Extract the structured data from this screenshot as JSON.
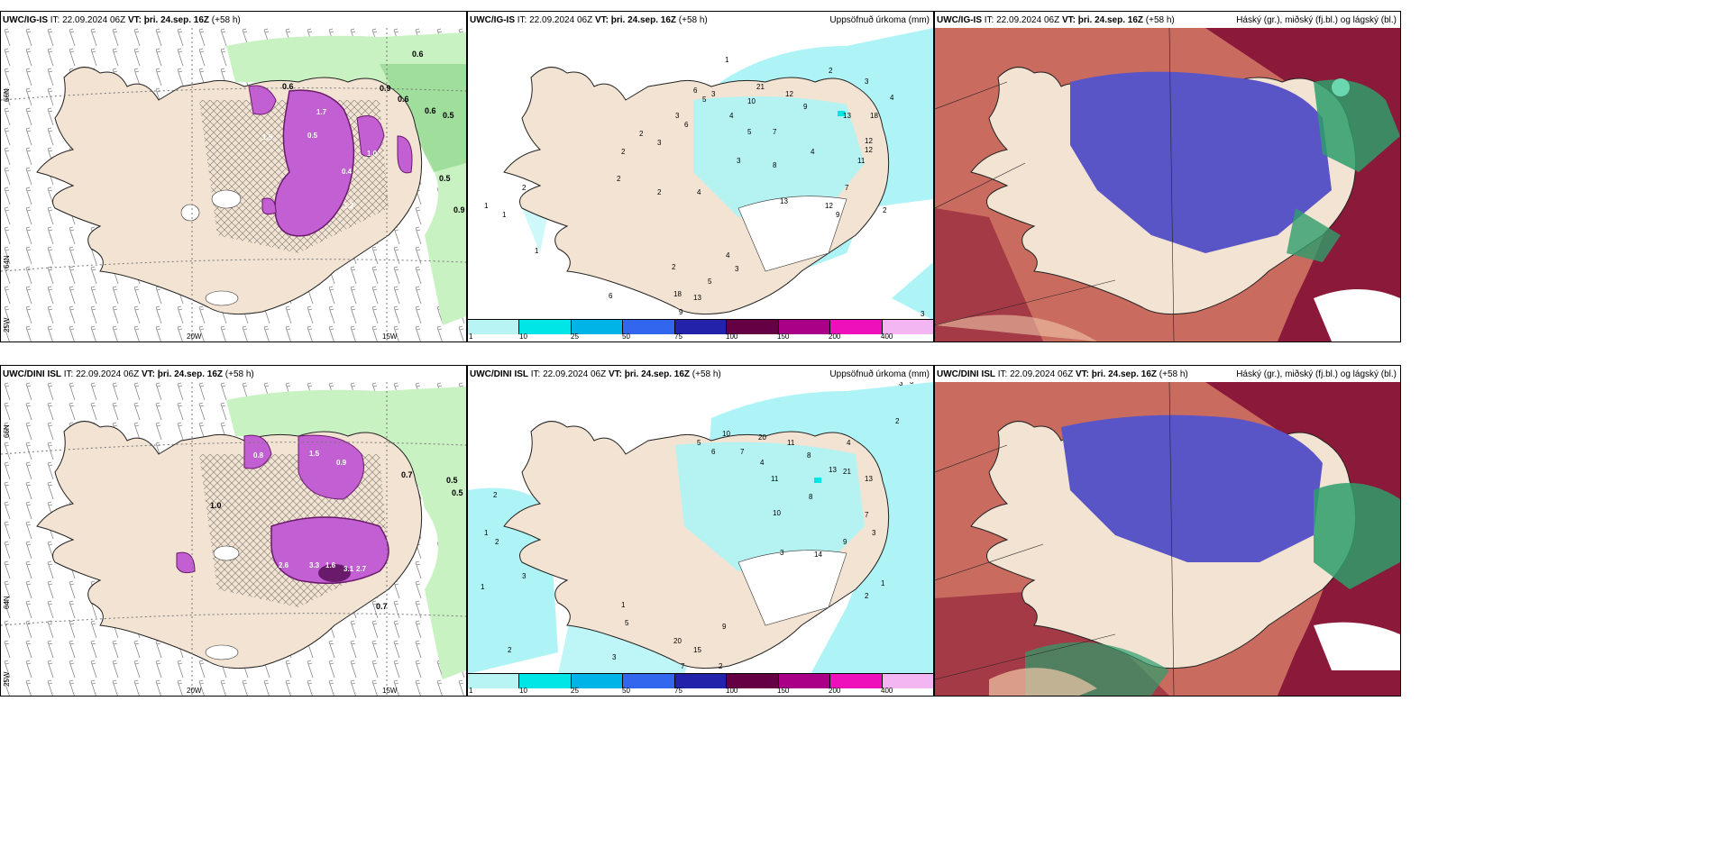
{
  "panels": {
    "p1": {
      "model": "UWC/IG-IS",
      "it_prefix": "IT:",
      "it": "22.09.2024 06Z",
      "vt_prefix": "VT:",
      "vt": "þri. 24.sep. 16Z",
      "lead": "(+58 h)",
      "right": ""
    },
    "p2": {
      "model": "UWC/IG-IS",
      "it_prefix": "IT:",
      "it": "22.09.2024 06Z",
      "vt_prefix": "VT:",
      "vt": "þri. 24.sep. 16Z",
      "lead": "(+58 h)",
      "right": "Uppsöfnuð úrkoma (mm)"
    },
    "p3": {
      "model": "UWC/IG-IS",
      "it_prefix": "IT:",
      "it": "22.09.2024 06Z",
      "vt_prefix": "VT:",
      "vt": "þri. 24.sep. 16Z",
      "lead": "(+58 h)",
      "right": "Háský (gr.), miðský (fj.bl.) og lágský (bl.)"
    },
    "p4": {
      "model": "UWC/DINI ISL",
      "it_prefix": "IT:",
      "it": "22.09.2024 06Z",
      "vt_prefix": "VT:",
      "vt": "þri. 24.sep. 16Z",
      "lead": "(+58 h)",
      "right": ""
    },
    "p5": {
      "model": "UWC/DINI ISL",
      "it_prefix": "IT:",
      "it": "22.09.2024 06Z",
      "vt_prefix": "VT:",
      "vt": "þri. 24.sep. 16Z",
      "lead": "(+58 h)",
      "right": "Uppsöfnuð úrkoma (mm)"
    },
    "p6": {
      "model": "UWC/DINI ISL",
      "it_prefix": "IT:",
      "it": "22.09.2024 06Z",
      "vt_prefix": "VT:",
      "vt": "þri. 24.sep. 16Z",
      "lead": "(+58 h)",
      "right": "Háský (gr.), miðský (fj.bl.) og lágský (bl.)"
    }
  },
  "axes": {
    "lat_66": "66N",
    "lat_64": "64N",
    "lon_25": "25W",
    "lon_20": "20W",
    "lon_15": "15W"
  },
  "colorbar": {
    "labels": [
      "1",
      "10",
      "25",
      "50",
      "75",
      "100",
      "150",
      "200",
      "400"
    ],
    "colors": [
      "#b8f4f4",
      "#00e5e5",
      "#00b4e8",
      "#3366ee",
      "#2222aa",
      "#660044",
      "#aa0088",
      "#ee11bb",
      "#f3b6f3"
    ]
  },
  "map_colors": {
    "land": "#f2e3d2",
    "precip_light": "#aef4f6",
    "snow_green": "#c9f2c2",
    "snow_green_dark": "#6ec86a",
    "convective": "#c25fd3",
    "convective_dark": "#6a1a6a",
    "cloud_high": "#c96b5f",
    "cloud_mid": "#5a55c6",
    "cloud_low": "#8b1a3a",
    "cloud_green": "#2e9e6c"
  },
  "precip_values_top": [
    "1",
    "6",
    "3",
    "5",
    "21",
    "12",
    "10",
    "2",
    "3",
    "4",
    "3",
    "4",
    "6",
    "5",
    "9",
    "13",
    "18",
    "12",
    "2",
    "3",
    "7",
    "2",
    "8",
    "3",
    "13",
    "11",
    "12",
    "4",
    "2",
    "2",
    "1",
    "1",
    "2",
    "4",
    "12",
    "9",
    "7",
    "2",
    "1",
    "2",
    "4",
    "3",
    "5",
    "18",
    "13",
    "9",
    "6",
    "3"
  ],
  "precip_values_bottom": [
    "3",
    "3",
    "2",
    "20",
    "11",
    "8",
    "13",
    "4",
    "13",
    "21",
    "5",
    "6",
    "10",
    "7",
    "4",
    "11",
    "10",
    "8",
    "7",
    "3",
    "9",
    "3",
    "14",
    "2",
    "1",
    "2",
    "1",
    "2",
    "3",
    "1",
    "2",
    "5",
    "1",
    "20",
    "15",
    "9",
    "7",
    "2",
    "3"
  ],
  "cape_values_top": [
    "0.6",
    "0.9",
    "0.6",
    "0.6",
    "0.5",
    "0.5",
    "0.9",
    "0.6",
    "0.5",
    "0.4",
    "1.0",
    "1.5",
    "1.7",
    "1.3"
  ],
  "cape_values_bottom": [
    "0.5",
    "0.5",
    "0.7",
    "1.0",
    "2.6",
    "3.3",
    "1.6",
    "3.1",
    "2.7",
    "0.7",
    "1.5",
    "0.9",
    "0.8"
  ]
}
